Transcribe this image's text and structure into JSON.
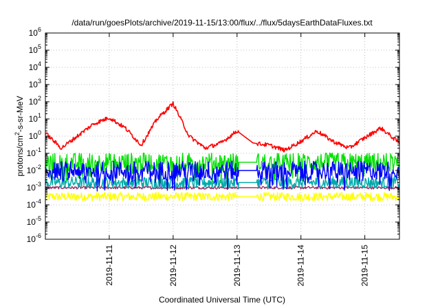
{
  "chart_data": {
    "type": "line",
    "title": "/data/run/goesPlots/archive/2019-11-15/13:00/flux/../flux/5daysEarthDataFluxes.txt",
    "xlabel": "Coordinated Universal Time (UTC)",
    "ylabel_main": "protons/cm",
    "ylabel_sup": "2",
    "ylabel_rest": "-s-sr-MeV",
    "yscale": "log",
    "ylim": [
      1e-06,
      1000000
    ],
    "xlim": [
      "2019-11-10 00:00",
      "2019-11-15 13:00"
    ],
    "grid": true,
    "y_ticks": [
      {
        "base": "10",
        "exp": "-6"
      },
      {
        "base": "10",
        "exp": "-5"
      },
      {
        "base": "10",
        "exp": "-4"
      },
      {
        "base": "10",
        "exp": "-3"
      },
      {
        "base": "10",
        "exp": "-2"
      },
      {
        "base": "10",
        "exp": "-1"
      },
      {
        "base": "10",
        "exp": "0"
      },
      {
        "base": "10",
        "exp": "1"
      },
      {
        "base": "10",
        "exp": "2"
      },
      {
        "base": "10",
        "exp": "3"
      },
      {
        "base": "10",
        "exp": "4"
      },
      {
        "base": "10",
        "exp": "5"
      },
      {
        "base": "10",
        "exp": "6"
      }
    ],
    "x_ticks": [
      "2019-11-11",
      "2019-11-12",
      "2019-11-13",
      "2019-11-14",
      "2019-11-15"
    ],
    "data_gaps": [
      {
        "start": "2019-11-13 00:30",
        "end": "2019-11-13 07:30"
      }
    ],
    "series": [
      {
        "color": "#ff0000",
        "key": "red",
        "x": [
          "2019-11-10 00:00",
          "2019-11-10 06:00",
          "2019-11-10 12:00",
          "2019-11-10 18:00",
          "2019-11-11 00:00",
          "2019-11-11 06:00",
          "2019-11-11 12:00",
          "2019-11-11 18:00",
          "2019-11-12 00:00",
          "2019-11-12 06:00",
          "2019-11-12 12:00",
          "2019-11-12 18:00",
          "2019-11-13 00:00",
          "2019-11-13 06:00",
          "2019-11-13 12:00",
          "2019-11-13 18:00",
          "2019-11-14 00:00",
          "2019-11-14 06:00",
          "2019-11-14 12:00",
          "2019-11-14 18:00",
          "2019-11-15 00:00",
          "2019-11-15 06:00",
          "2019-11-15 13:00"
        ],
        "y": [
          1.5,
          0.2,
          1.0,
          5,
          12,
          3,
          0.3,
          10,
          80,
          1.0,
          0.2,
          0.4,
          2.0,
          0.4,
          0.3,
          0.15,
          0.5,
          2.0,
          0.5,
          0.2,
          0.8,
          3.0,
          0.4
        ]
      },
      {
        "color": "#00e000",
        "key": "green",
        "x": [
          "2019-11-10 00:00",
          "2019-11-10 12:00",
          "2019-11-11 00:00",
          "2019-11-11 12:00",
          "2019-11-12 00:00",
          "2019-11-12 12:00",
          "2019-11-13 00:00",
          "2019-11-13 12:00",
          "2019-11-14 00:00",
          "2019-11-14 12:00",
          "2019-11-15 00:00",
          "2019-11-15 13:00"
        ],
        "y": [
          0.03,
          0.03,
          0.03,
          0.03,
          0.03,
          0.03,
          0.03,
          0.03,
          0.03,
          0.03,
          0.03,
          0.03
        ]
      },
      {
        "color": "#0000ff",
        "key": "blue",
        "x": [
          "2019-11-10 00:00",
          "2019-11-10 12:00",
          "2019-11-11 00:00",
          "2019-11-11 12:00",
          "2019-11-12 00:00",
          "2019-11-12 12:00",
          "2019-11-13 00:00",
          "2019-11-13 12:00",
          "2019-11-14 00:00",
          "2019-11-14 12:00",
          "2019-11-15 00:00",
          "2019-11-15 13:00"
        ],
        "y": [
          0.01,
          0.01,
          0.01,
          0.01,
          0.01,
          0.01,
          0.01,
          0.01,
          0.01,
          0.01,
          0.01,
          0.01
        ]
      },
      {
        "color": "#00aaaa",
        "key": "cyan",
        "x": [
          "2019-11-10 00:00",
          "2019-11-10 12:00",
          "2019-11-11 00:00",
          "2019-11-11 12:00",
          "2019-11-12 00:00",
          "2019-11-12 12:00",
          "2019-11-13 00:00",
          "2019-11-13 12:00",
          "2019-11-14 00:00",
          "2019-11-14 12:00",
          "2019-11-15 00:00",
          "2019-11-15 13:00"
        ],
        "y": [
          0.002,
          0.002,
          0.002,
          0.002,
          0.002,
          0.002,
          0.002,
          0.002,
          0.002,
          0.002,
          0.002,
          0.002
        ]
      },
      {
        "color": "#993366",
        "key": "purple",
        "x": [
          "2019-11-10 00:00",
          "2019-11-10 12:00",
          "2019-11-11 00:00",
          "2019-11-11 12:00",
          "2019-11-12 00:00",
          "2019-11-12 12:00",
          "2019-11-13 00:00",
          "2019-11-13 12:00",
          "2019-11-14 00:00",
          "2019-11-14 12:00",
          "2019-11-15 00:00",
          "2019-11-15 13:00"
        ],
        "y": [
          0.001,
          0.001,
          0.001,
          0.001,
          0.001,
          0.001,
          0.001,
          0.001,
          0.001,
          0.001,
          0.001,
          0.001
        ]
      },
      {
        "color": "#ffff00",
        "key": "yellow",
        "x": [
          "2019-11-10 00:00",
          "2019-11-10 12:00",
          "2019-11-11 00:00",
          "2019-11-11 12:00",
          "2019-11-12 00:00",
          "2019-11-12 12:00",
          "2019-11-13 00:00",
          "2019-11-13 12:00",
          "2019-11-14 00:00",
          "2019-11-14 12:00",
          "2019-11-15 00:00",
          "2019-11-15 13:00"
        ],
        "y": [
          0.0003,
          0.0003,
          0.0003,
          0.0003,
          0.0003,
          0.0003,
          0.0003,
          0.0003,
          0.0003,
          0.0003,
          0.0003,
          0.0003
        ]
      }
    ]
  }
}
